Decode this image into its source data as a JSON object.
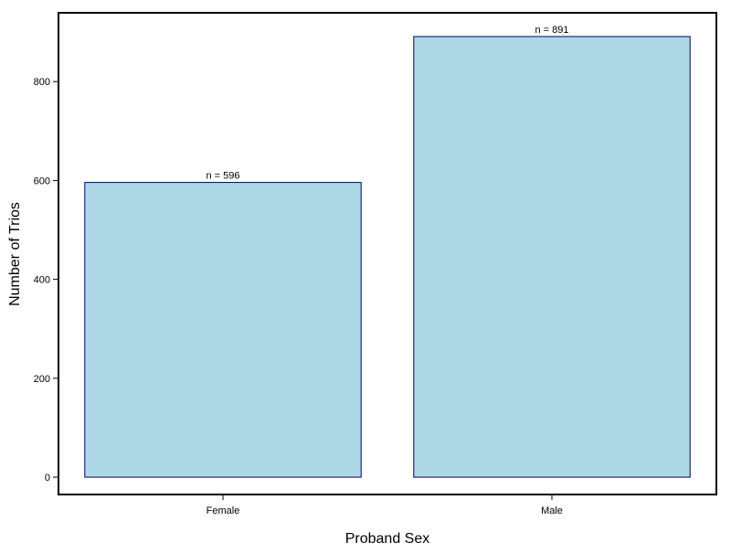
{
  "chart_data": {
    "type": "bar",
    "categories": [
      "Female",
      "Male"
    ],
    "values": [
      596,
      891
    ],
    "value_labels": [
      "n = 596",
      "n = 891"
    ],
    "color": "#add8e6",
    "edge_color": "#000066",
    "xlabel": "Proband Sex",
    "ylabel": "Number of Trios",
    "ylim": [
      -35,
      939
    ],
    "yticks": [
      0,
      200,
      400,
      600,
      800
    ],
    "grid": false
  }
}
